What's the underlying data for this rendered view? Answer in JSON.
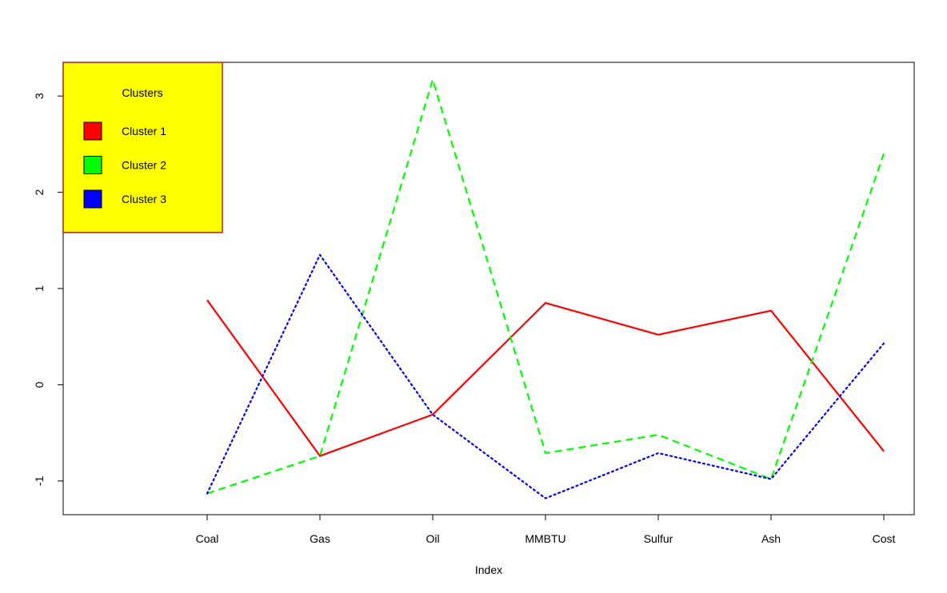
{
  "chart_data": {
    "type": "line",
    "categories": [
      "Coal",
      "Gas",
      "Oil",
      "MMBTU",
      "Sulfur",
      "Ash",
      "Cost"
    ],
    "xlabel": "Index",
    "ylabel": "",
    "ylim": [
      -1.35,
      3.35
    ],
    "yticks": [
      -1,
      0,
      1,
      2,
      3
    ],
    "grid": false,
    "legend": {
      "title": "Clusters",
      "position": "top-left",
      "background": "#ffff00",
      "border": "#b22222"
    },
    "series": [
      {
        "name": "Cluster 1",
        "color": "#ff0000",
        "dash": "solid",
        "values": [
          0.88,
          -0.74,
          -0.31,
          0.85,
          0.52,
          0.77,
          -0.69
        ]
      },
      {
        "name": "Cluster 2",
        "color": "#00ff00",
        "dash": "dashed",
        "values": [
          -1.13,
          -0.74,
          3.17,
          -0.71,
          -0.52,
          -0.98,
          2.4
        ]
      },
      {
        "name": "Cluster 3",
        "color": "#0000ff",
        "dash": "dotted",
        "values": [
          -1.13,
          1.35,
          -0.31,
          -1.18,
          -0.71,
          -0.98,
          0.43
        ]
      }
    ]
  }
}
